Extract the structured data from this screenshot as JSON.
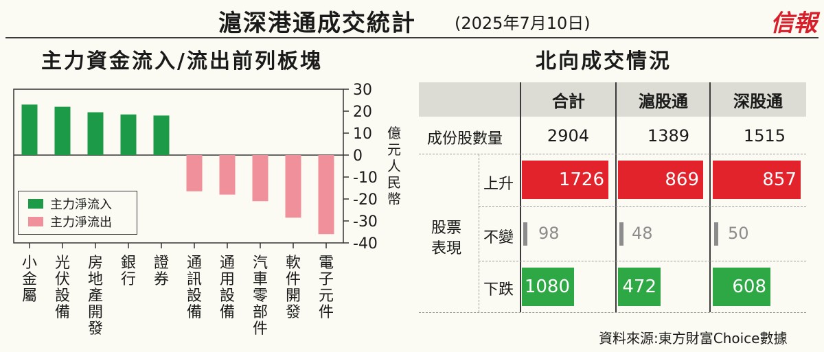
{
  "header": {
    "title": "滬深港通成交統計",
    "date": "(2025年7月10日)",
    "logo": "信報"
  },
  "left_panel": {
    "title": "主力資金流入/流出前列板塊",
    "unit": "億元人民幣"
  },
  "right_panel": {
    "title": "北向成交情況"
  },
  "legend": {
    "inflow": "主力淨流入",
    "outflow": "主力淨流出"
  },
  "colors": {
    "inflow": "#1c9a48",
    "outflow": "#f0909a",
    "up": "#e3232c",
    "down": "#2da844",
    "flat": "#8c8c8c"
  },
  "chart_data": {
    "type": "bar",
    "categories": [
      "小金屬",
      "光伏設備",
      "房地產開發",
      "銀行",
      "證券",
      "通訊設備",
      "通用設備",
      "汽車零部件",
      "軟件開發",
      "電子元件"
    ],
    "values": [
      23,
      22,
      19.5,
      18.5,
      18,
      -16.5,
      -18,
      -21,
      -28.5,
      -36
    ],
    "ylim": [
      -40,
      30
    ],
    "yticks": [
      "30",
      "20",
      "10",
      "0",
      "-10",
      "-20",
      "-30",
      "-40"
    ],
    "ylabel": "億元人民幣",
    "legend": [
      "主力淨流入",
      "主力淨流出"
    ]
  },
  "table": {
    "columns": [
      "合計",
      "滬股通",
      "深股通"
    ],
    "total_label": "成份股數量",
    "totals": [
      "2904",
      "1389",
      "1515"
    ],
    "group_label_1": "股票",
    "group_label_2": "表現",
    "rows": [
      {
        "label": "上升",
        "type": "up",
        "values": [
          "1726",
          "869",
          "857"
        ],
        "fractions": [
          1.0,
          1.0,
          1.0
        ]
      },
      {
        "label": "不變",
        "type": "flat",
        "values": [
          "98",
          "48",
          "50"
        ],
        "fractions": [
          0.05,
          0.05,
          0.05
        ]
      },
      {
        "label": "下跌",
        "type": "down",
        "values": [
          "1080",
          "472",
          "608"
        ],
        "fractions": [
          0.6,
          0.5,
          0.66
        ]
      }
    ]
  },
  "source": "資料來源:東方財富Choice數據"
}
